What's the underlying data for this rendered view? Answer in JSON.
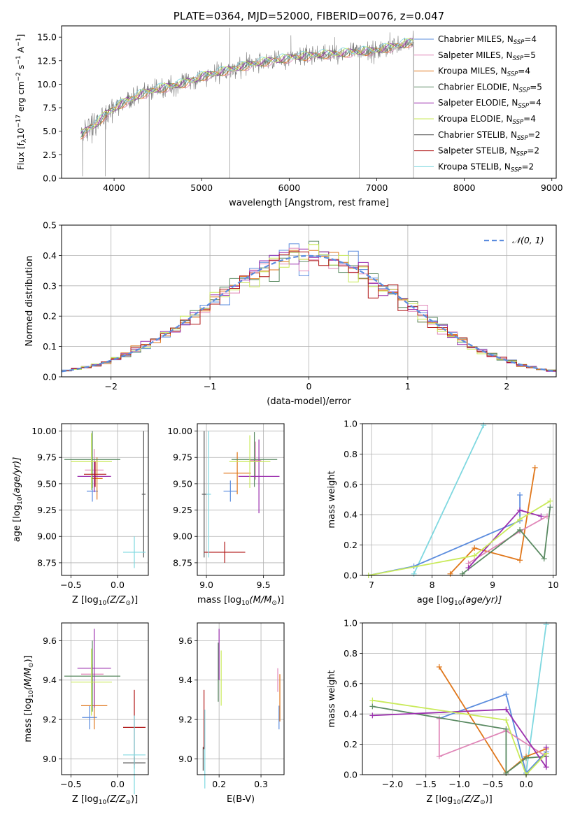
{
  "colors": {
    "chabrier_miles": "#5b8cde",
    "salpeter_miles": "#e087b8",
    "kroupa_miles": "#e0771b",
    "chabrier_elodie": "#5a8a62",
    "salpeter_elodie": "#9b2fae",
    "kroupa_elodie": "#c9ea5a",
    "chabrier_stelib": "#555555",
    "salpeter_stelib": "#b01515",
    "kroupa_stelib": "#7fd8e0",
    "data": "#7a7a7a",
    "gauss": "#5b8cde"
  },
  "chart_data": [
    {
      "id": "spectrum",
      "type": "line",
      "title": "PLATE=0364, MJD=52000, FIBERID=0076, z=0.047",
      "xlabel": "wavelength [Angstrom, rest frame]",
      "ylabel": "Flux [f",
      "ylabel_sub": "λ",
      "ylabel_rest": "10",
      "ylabel_sup1": "−17",
      "ylabel_tail": " erg cm",
      "ylabel_sup2": "−2",
      "ylabel_tail2": " s",
      "ylabel_sup3": "−1",
      "ylabel_tail3": " A",
      "ylabel_sup4": "−1",
      "ylabel_end": "]",
      "xlim": [
        3400,
        9050
      ],
      "ylim": [
        0,
        16.2
      ],
      "xticks": [
        "4000",
        "5000",
        "6000",
        "7000",
        "8000",
        "9000"
      ],
      "xtick_values": [
        4000,
        5000,
        6000,
        7000,
        8000,
        9000
      ],
      "yticks": [
        "0.0",
        "2.5",
        "5.0",
        "7.5",
        "10.0",
        "12.5",
        "15.0"
      ],
      "ytick_values": [
        0,
        2.5,
        5,
        7.5,
        10,
        12.5,
        15
      ],
      "continuum": [
        [
          3620,
          4.6
        ],
        [
          3700,
          5.2
        ],
        [
          3800,
          5.8
        ],
        [
          3900,
          6.8
        ],
        [
          4000,
          7.4
        ],
        [
          4100,
          8.0
        ],
        [
          4300,
          8.9
        ],
        [
          4500,
          9.5
        ],
        [
          4800,
          10.1
        ],
        [
          5000,
          10.8
        ],
        [
          5300,
          11.5
        ],
        [
          5600,
          12.2
        ],
        [
          6000,
          12.8
        ],
        [
          6300,
          13.1
        ],
        [
          6600,
          13.3
        ],
        [
          7000,
          13.6
        ],
        [
          7200,
          14.0
        ],
        [
          7400,
          14.5
        ]
      ],
      "data_range": [
        3620,
        7420
      ],
      "drops": [
        [
          3640,
          0.2
        ],
        [
          3900,
          0.2
        ],
        [
          4400,
          0.0
        ],
        [
          5320,
          0.0
        ],
        [
          6800,
          0.0
        ],
        [
          7420,
          0.0
        ]
      ],
      "spikes": [
        [
          5320,
          16.0
        ],
        [
          6020,
          15.2
        ],
        [
          6520,
          15.0
        ],
        [
          7150,
          15.5
        ]
      ],
      "legend": [
        {
          "label": "Chabrier MILES, N",
          "n": "=4",
          "color_key": "chabrier_miles"
        },
        {
          "label": "Salpeter MILES, N",
          "n": "=5",
          "color_key": "salpeter_miles"
        },
        {
          "label": "Kroupa MILES, N",
          "n": "=4",
          "color_key": "kroupa_miles"
        },
        {
          "label": "Chabrier ELODIE, N",
          "n": "=5",
          "color_key": "chabrier_elodie"
        },
        {
          "label": "Salpeter ELODIE, N",
          "n": "=4",
          "color_key": "salpeter_elodie"
        },
        {
          "label": "Kroupa ELODIE, N",
          "n": "=4",
          "color_key": "kroupa_elodie"
        },
        {
          "label": "Chabrier STELIB, N",
          "n": "=2",
          "color_key": "chabrier_stelib"
        },
        {
          "label": "Salpeter STELIB, N",
          "n": "=2",
          "color_key": "salpeter_stelib"
        },
        {
          "label": "Kroupa STELIB, N",
          "n": "=2",
          "color_key": "kroupa_stelib"
        }
      ],
      "legend_sub": "SSP"
    },
    {
      "id": "residuals",
      "type": "histogram",
      "xlabel": "(data-model)/error",
      "ylabel": "Normed distribution",
      "xlim": [
        -2.5,
        2.5
      ],
      "ylim": [
        0,
        0.5
      ],
      "xticks": [
        "−2",
        "−1",
        "0",
        "1",
        "2"
      ],
      "xtick_values": [
        -2,
        -1,
        0,
        1,
        2
      ],
      "yticks": [
        "0.0",
        "0.1",
        "0.2",
        "0.3",
        "0.4",
        "0.5"
      ],
      "ytick_values": [
        0,
        0.1,
        0.2,
        0.3,
        0.4,
        0.5
      ],
      "bin_width": 0.1,
      "legend_label": "𝒩(0, 1)",
      "normal": {
        "mean": 0,
        "sigma": 1
      }
    },
    {
      "id": "age_vs_Z",
      "type": "errorbar",
      "xlabel": "Z [log",
      "xlabel_sub": "10",
      "xlabel_tail": "(Z/Z",
      "xlabel_sub2": "⊙",
      "xlabel_end": ")]",
      "ylabel": "age  [log",
      "ylabel_sub": "10",
      "ylabel_tail": "(age/yr)]",
      "xlim": [
        -0.6,
        0.33
      ],
      "ylim": [
        8.63,
        10.07
      ],
      "xticks": [
        "−0.5",
        "0.0"
      ],
      "xtick_values": [
        -0.5,
        0
      ],
      "yticks": [
        "8.75",
        "9.00",
        "9.25",
        "9.50",
        "9.75",
        "10.00"
      ],
      "ytick_values": [
        8.75,
        9.0,
        9.25,
        9.5,
        9.75,
        10.0
      ],
      "points": [
        {
          "color_key": "chabrier_miles",
          "x": -0.27,
          "xe": 0.06,
          "y": 9.43,
          "ye": 0.1
        },
        {
          "color_key": "salpeter_miles",
          "x": -0.25,
          "xe": 0.1,
          "y": 9.63,
          "ye": 0.2
        },
        {
          "color_key": "kroupa_miles",
          "x": -0.22,
          "xe": 0.06,
          "y": 9.55,
          "ye": 0.2
        },
        {
          "color_key": "chabrier_elodie",
          "x": -0.27,
          "xe": 0.3,
          "y": 9.73,
          "ye": 0.27
        },
        {
          "color_key": "salpeter_elodie",
          "x": -0.25,
          "xe": 0.18,
          "y": 9.57,
          "ye": 0.15
        },
        {
          "color_key": "kroupa_elodie",
          "x": -0.28,
          "xe": 0.22,
          "y": 9.71,
          "ye": 0.27
        },
        {
          "color_key": "chabrier_stelib",
          "x": 0.28,
          "xe": 0.02,
          "y": 9.4,
          "ye": 0.6
        },
        {
          "color_key": "salpeter_stelib",
          "x": -0.24,
          "xe": 0.12,
          "y": 9.59,
          "ye": 0.12
        },
        {
          "color_key": "kroupa_stelib",
          "x": 0.18,
          "xe": 0.12,
          "y": 8.85,
          "ye": 0.15
        }
      ]
    },
    {
      "id": "age_vs_mass",
      "type": "errorbar",
      "xlabel": "mass [log",
      "xlabel_sub": "10",
      "xlabel_tail": "(M/M",
      "xlabel_sub2": "⊙",
      "xlabel_end": ")]",
      "xlim": [
        8.92,
        9.68
      ],
      "ylim": [
        8.63,
        10.07
      ],
      "xticks": [
        "9.0",
        "9.5"
      ],
      "xtick_values": [
        9.0,
        9.5
      ],
      "yticks": [
        "8.75",
        "9.00",
        "9.25",
        "9.50",
        "9.75",
        "10.00"
      ],
      "ytick_values": [
        8.75,
        9.0,
        9.25,
        9.5,
        9.75,
        10.0
      ],
      "points": [
        {
          "color_key": "chabrier_miles",
          "x": 9.21,
          "xe": 0.06,
          "y": 9.43,
          "ye": 0.1
        },
        {
          "color_key": "salpeter_miles",
          "x": 9.43,
          "xe": 0.05,
          "y": 9.72,
          "ye": 0.18
        },
        {
          "color_key": "kroupa_miles",
          "x": 9.27,
          "xe": 0.12,
          "y": 9.6,
          "ye": 0.2
        },
        {
          "color_key": "chabrier_elodie",
          "x": 9.42,
          "xe": 0.2,
          "y": 9.73,
          "ye": 0.26
        },
        {
          "color_key": "salpeter_elodie",
          "x": 9.46,
          "xe": 0.18,
          "y": 9.57,
          "ye": 0.35
        },
        {
          "color_key": "kroupa_elodie",
          "x": 9.38,
          "xe": 0.18,
          "y": 9.71,
          "ye": 0.25
        },
        {
          "color_key": "chabrier_stelib",
          "x": 8.98,
          "xe": 0.02,
          "y": 9.4,
          "ye": 0.6
        },
        {
          "color_key": "salpeter_stelib",
          "x": 9.16,
          "xe": 0.18,
          "y": 8.85,
          "ye": 0.1
        },
        {
          "color_key": "kroupa_stelib",
          "x": 9.02,
          "xe": 0.02,
          "y": 9.4,
          "ye": 0.6
        }
      ]
    },
    {
      "id": "weight_vs_age",
      "type": "line",
      "xlabel": "age  [log",
      "xlabel_sub": "10",
      "xlabel_tail": "(age/yr)]",
      "ylabel": "mass weight",
      "xlim": [
        6.85,
        10.05
      ],
      "ylim": [
        0,
        1.0
      ],
      "xticks": [
        "7",
        "8",
        "9",
        "10"
      ],
      "xtick_values": [
        7,
        8,
        9,
        10
      ],
      "yticks": [
        "0.0",
        "0.2",
        "0.4",
        "0.6",
        "0.8",
        "1.0"
      ],
      "ytick_values": [
        0,
        0.2,
        0.4,
        0.6,
        0.8,
        1.0
      ],
      "series": [
        {
          "color_key": "kroupa_stelib",
          "points": [
            [
              7.7,
              0.01
            ],
            [
              8.85,
              0.99
            ]
          ]
        },
        {
          "color_key": "chabrier_miles",
          "points": [
            [
              6.95,
              0.0
            ],
            [
              7.7,
              0.06
            ],
            [
              9.45,
              0.36
            ],
            [
              9.45,
              0.53
            ]
          ]
        },
        {
          "color_key": "kroupa_miles",
          "points": [
            [
              8.3,
              0.01
            ],
            [
              8.7,
              0.18
            ],
            [
              9.45,
              0.1
            ],
            [
              9.7,
              0.71
            ]
          ]
        },
        {
          "color_key": "salpeter_miles",
          "points": [
            [
              8.6,
              0.08
            ],
            [
              9.45,
              0.29
            ],
            [
              9.9,
              0.39
            ]
          ]
        },
        {
          "color_key": "chabrier_elodie",
          "points": [
            [
              8.5,
              0.01
            ],
            [
              9.45,
              0.3
            ],
            [
              9.85,
              0.11
            ],
            [
              9.95,
              0.45
            ]
          ]
        },
        {
          "color_key": "salpeter_elodie",
          "points": [
            [
              8.6,
              0.05
            ],
            [
              9.45,
              0.43
            ],
            [
              9.8,
              0.39
            ]
          ]
        },
        {
          "color_key": "kroupa_elodie",
          "points": [
            [
              6.95,
              0.0
            ],
            [
              8.7,
              0.13
            ],
            [
              9.45,
              0.37
            ],
            [
              9.95,
              0.49
            ]
          ]
        }
      ]
    },
    {
      "id": "mass_vs_Z",
      "type": "errorbar",
      "xlabel": "Z [log",
      "xlabel_sub": "10",
      "xlabel_tail": "(Z/Z",
      "xlabel_sub2": "⊙",
      "xlabel_end": ")]",
      "ylabel": "mass [log",
      "ylabel_sub": "10",
      "ylabel_tail": "(M/M",
      "ylabel_sub2": "⊙",
      "ylabel_end": ")]",
      "xlim": [
        -0.6,
        0.33
      ],
      "ylim": [
        8.92,
        9.69
      ],
      "xticks": [
        "−0.5",
        "0.0"
      ],
      "xtick_values": [
        -0.5,
        0
      ],
      "yticks": [
        "9.0",
        "9.2",
        "9.4",
        "9.6"
      ],
      "ytick_values": [
        9.0,
        9.2,
        9.4,
        9.6
      ],
      "points": [
        {
          "color_key": "chabrier_miles",
          "x": -0.3,
          "xe": 0.08,
          "y": 9.21,
          "ye": 0.06
        },
        {
          "color_key": "salpeter_miles",
          "x": -0.27,
          "xe": 0.12,
          "y": 9.43,
          "ye": 0.05
        },
        {
          "color_key": "kroupa_miles",
          "x": -0.25,
          "xe": 0.14,
          "y": 9.27,
          "ye": 0.12
        },
        {
          "color_key": "chabrier_elodie",
          "x": -0.27,
          "xe": 0.3,
          "y": 9.42,
          "ye": 0.18
        },
        {
          "color_key": "salpeter_elodie",
          "x": -0.25,
          "xe": 0.18,
          "y": 9.46,
          "ye": 0.2
        },
        {
          "color_key": "kroupa_elodie",
          "x": -0.28,
          "xe": 0.22,
          "y": 9.39,
          "ye": 0.17
        },
        {
          "color_key": "chabrier_stelib",
          "x": 0.18,
          "xe": 0.12,
          "y": 8.98,
          "ye": 0.03
        },
        {
          "color_key": "salpeter_stelib",
          "x": 0.18,
          "xe": 0.12,
          "y": 9.16,
          "ye": 0.19
        },
        {
          "color_key": "kroupa_stelib",
          "x": 0.18,
          "xe": 0.12,
          "y": 9.02,
          "ye": 0.2
        }
      ]
    },
    {
      "id": "mass_vs_ebv",
      "type": "errorbar",
      "xlabel": "E(B-V)",
      "xlim": [
        0.148,
        0.355
      ],
      "ylim": [
        8.92,
        9.69
      ],
      "xticks": [
        "0.2",
        "0.3"
      ],
      "xtick_values": [
        0.2,
        0.3
      ],
      "yticks": [
        "9.0",
        "9.2",
        "9.4",
        "9.6"
      ],
      "ytick_values": [
        9.0,
        9.2,
        9.4,
        9.6
      ],
      "points": [
        {
          "color_key": "chabrier_miles",
          "x": 0.343,
          "xe": 0.0,
          "y": 9.21,
          "ye": 0.06
        },
        {
          "color_key": "salpeter_miles",
          "x": 0.34,
          "xe": 0.0,
          "y": 9.4,
          "ye": 0.06
        },
        {
          "color_key": "kroupa_miles",
          "x": 0.345,
          "xe": 0.0,
          "y": 9.31,
          "ye": 0.12
        },
        {
          "color_key": "chabrier_elodie",
          "x": 0.198,
          "xe": 0.0,
          "y": 9.44,
          "ye": 0.15
        },
        {
          "color_key": "salpeter_elodie",
          "x": 0.2,
          "xe": 0.0,
          "y": 9.53,
          "ye": 0.13
        },
        {
          "color_key": "kroupa_elodie",
          "x": 0.205,
          "xe": 0.0,
          "y": 9.41,
          "ye": 0.14
        },
        {
          "color_key": "chabrier_stelib",
          "x": 0.162,
          "xe": 0.0,
          "y": 9.0,
          "ye": 0.06
        },
        {
          "color_key": "salpeter_stelib",
          "x": 0.164,
          "xe": 0.0,
          "y": 9.2,
          "ye": 0.15
        },
        {
          "color_key": "kroupa_stelib",
          "x": 0.166,
          "xe": 0.0,
          "y": 9.05,
          "ye": 0.2
        }
      ]
    },
    {
      "id": "weight_vs_Z",
      "type": "line",
      "xlabel": "Z [log",
      "xlabel_sub": "10",
      "xlabel_tail": "(Z/Z",
      "xlabel_sub2": "⊙",
      "xlabel_end": ")]",
      "ylabel": "mass weight",
      "xlim": [
        -2.45,
        0.45
      ],
      "ylim": [
        0,
        1.0
      ],
      "xticks": [
        "−2.0",
        "−1.5",
        "−1.0",
        "−0.5",
        "0.0"
      ],
      "xtick_values": [
        -2.0,
        -1.5,
        -1.0,
        -0.5,
        0.0
      ],
      "yticks": [
        "0.0",
        "0.2",
        "0.4",
        "0.6",
        "0.8",
        "1.0"
      ],
      "ytick_values": [
        0,
        0.2,
        0.4,
        0.6,
        0.8,
        1.0
      ],
      "series": [
        {
          "color_key": "kroupa_stelib",
          "points": [
            [
              0.0,
              0.01
            ],
            [
              0.3,
              0.99
            ]
          ]
        },
        {
          "color_key": "chabrier_miles",
          "points": [
            [
              -1.3,
              0.37
            ],
            [
              -0.3,
              0.53
            ],
            [
              0.0,
              0.01
            ],
            [
              0.3,
              0.15
            ]
          ]
        },
        {
          "color_key": "kroupa_miles",
          "points": [
            [
              -1.3,
              0.71
            ],
            [
              -0.3,
              0.01
            ],
            [
              0.0,
              0.12
            ],
            [
              0.3,
              0.17
            ]
          ]
        },
        {
          "color_key": "salpeter_miles",
          "points": [
            [
              -1.3,
              0.37
            ],
            [
              -1.3,
              0.12
            ],
            [
              -0.3,
              0.29
            ],
            [
              0.3,
              0.12
            ]
          ]
        },
        {
          "color_key": "chabrier_elodie",
          "points": [
            [
              -2.3,
              0.45
            ],
            [
              -0.3,
              0.3
            ],
            [
              -0.3,
              0.01
            ],
            [
              0.0,
              0.11
            ],
            [
              0.3,
              0.12
            ]
          ]
        },
        {
          "color_key": "salpeter_elodie",
          "points": [
            [
              -2.3,
              0.39
            ],
            [
              -0.3,
              0.43
            ],
            [
              0.3,
              0.05
            ],
            [
              0.3,
              0.18
            ]
          ]
        },
        {
          "color_key": "kroupa_elodie",
          "points": [
            [
              -2.3,
              0.49
            ],
            [
              -0.3,
              0.36
            ],
            [
              0.0,
              0.0
            ],
            [
              0.3,
              0.14
            ]
          ]
        }
      ]
    }
  ]
}
